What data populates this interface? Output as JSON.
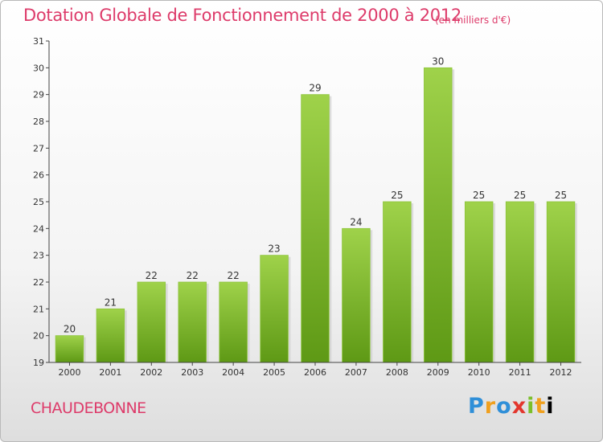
{
  "chart_data": {
    "type": "bar",
    "title": "Dotation Globale de Fonctionnement de 2000 à 2012",
    "unit": "(en milliers d'€)",
    "categories": [
      "2000",
      "2001",
      "2002",
      "2003",
      "2004",
      "2005",
      "2006",
      "2007",
      "2008",
      "2009",
      "2010",
      "2011",
      "2012"
    ],
    "values": [
      20,
      21,
      22,
      22,
      22,
      23,
      29,
      24,
      25,
      30,
      25,
      25,
      25
    ],
    "ylim": [
      19,
      31
    ],
    "yticks": [
      19,
      20,
      21,
      22,
      23,
      24,
      25,
      26,
      27,
      28,
      29,
      30,
      31
    ],
    "grid": false,
    "legend": "none"
  },
  "footer": {
    "commune": "CHAUDEBONNE",
    "logo_letters": [
      "P",
      "r",
      "o",
      "x",
      "i",
      "t",
      "i"
    ]
  },
  "colors": {
    "title": "#dd3b6a",
    "bar_top": "#9fd24a",
    "bar_bottom": "#5e9915",
    "axis": "#444444"
  }
}
